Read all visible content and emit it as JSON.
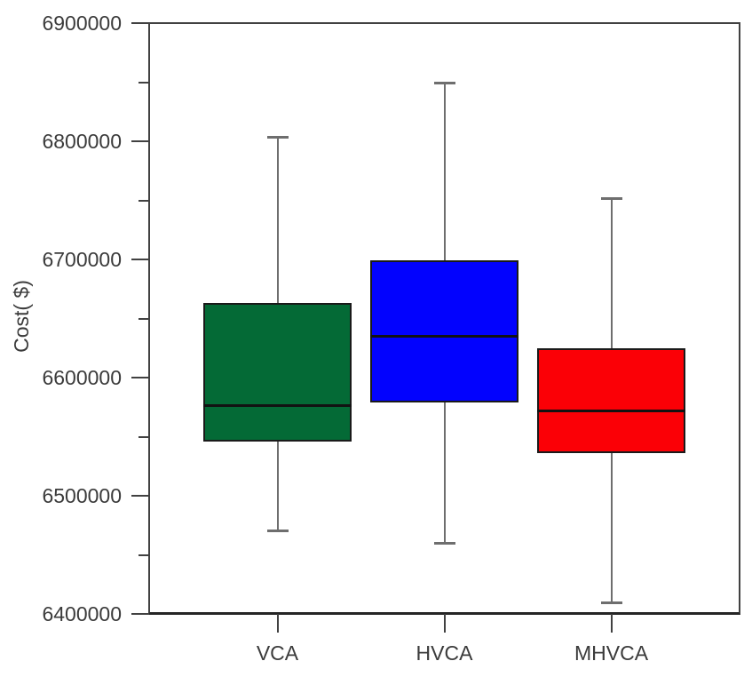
{
  "chart_data": {
    "type": "box",
    "title": "",
    "xlabel": "",
    "ylabel": "Cost( $)",
    "ylim": [
      6400000,
      6900000
    ],
    "y_major_step": 100000,
    "y_minor_step": 50000,
    "y_tick_labels": [
      "6400000",
      "6500000",
      "6600000",
      "6700000",
      "6800000",
      "6900000"
    ],
    "grid": false,
    "legend": "none",
    "categories": [
      "VCA",
      "HVCA",
      "MHVCA"
    ],
    "series": [
      {
        "name": "VCA",
        "box_color": "#046a36",
        "stats": {
          "whisker_low": 6471000,
          "q1": 6546000,
          "median": 6577000,
          "q3": 6663000,
          "whisker_high": 6804000
        }
      },
      {
        "name": "HVCA",
        "box_color": "#0202fe",
        "stats": {
          "whisker_low": 6460000,
          "q1": 6579000,
          "median": 6635000,
          "q3": 6699000,
          "whisker_high": 6850000
        }
      },
      {
        "name": "MHVCA",
        "box_color": "#fb0006",
        "stats": {
          "whisker_low": 6410000,
          "q1": 6536000,
          "median": 6572000,
          "q3": 6625000,
          "whisker_high": 6752000
        }
      }
    ]
  },
  "colors": {
    "background": "#ffffff",
    "whisker": "#6e6e6e",
    "median_line": "#121212",
    "box_border": "#1a1a1a",
    "frame": "#414141",
    "bottom_axis": "#252525",
    "axis_text": "#3b3b3b"
  }
}
